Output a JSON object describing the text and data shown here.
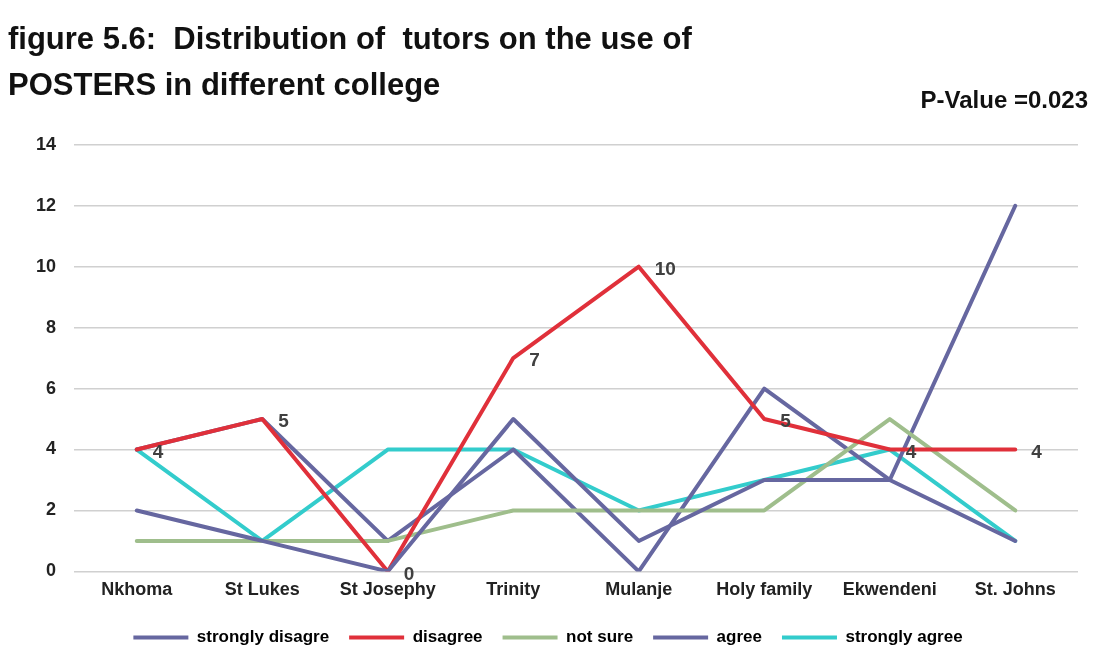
{
  "chart_data": {
    "type": "line",
    "title": "figure 5.6:  Distribution of  tutors on the use of POSTERS in different college",
    "annotations": [
      "P-Value =0.023"
    ],
    "categories": [
      "Nkhoma",
      "St Lukes",
      "St Josephy",
      "Trinity",
      "Mulanje",
      "Holy family",
      "Ekwendeni",
      "St. Johns"
    ],
    "series": [
      {
        "name": "strongly disagre",
        "color": "#6667a0",
        "values": [
          2,
          1,
          0,
          5,
          1,
          3,
          3,
          1
        ]
      },
      {
        "name": "disagree",
        "color": "#e0303a",
        "values": [
          4,
          5,
          0,
          7,
          10,
          5,
          4,
          4
        ],
        "value_labels": [
          "4",
          "5",
          "0",
          "7",
          "10",
          "5",
          "4",
          "4"
        ]
      },
      {
        "name": "not sure",
        "color": "#9fbe8c",
        "values": [
          1,
          1,
          1,
          2,
          2,
          2,
          5,
          2
        ]
      },
      {
        "name": "agree",
        "color": "#6667a0",
        "values": [
          4,
          5,
          1,
          4,
          0,
          6,
          3,
          12
        ]
      },
      {
        "name": "strongly agree",
        "color": "#33cccc",
        "values": [
          4,
          1,
          4,
          4,
          2,
          3,
          4,
          1
        ]
      }
    ],
    "ylim": [
      0,
      14
    ],
    "yticks": [
      0,
      2,
      4,
      6,
      8,
      10,
      12,
      14
    ],
    "grid": "y",
    "legend": "bottom",
    "marker": "none",
    "line_style": "solid"
  }
}
